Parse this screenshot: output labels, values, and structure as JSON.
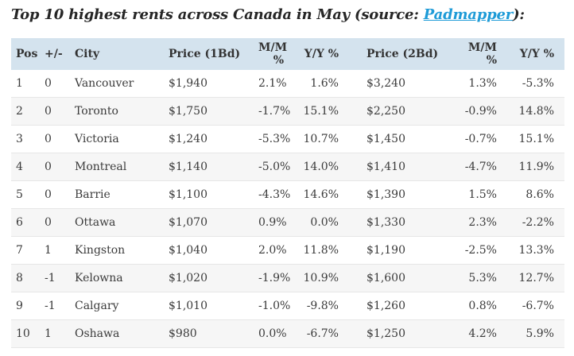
{
  "page": {
    "title_prefix": "Top 10 highest rents across Canada in May (source: ",
    "source_link": "Padmapper",
    "title_suffix": "):"
  },
  "colors": {
    "header_bg": "#d4e3ee",
    "row_alt_bg": "#f6f6f6",
    "row_border": "#e6e6e6",
    "link_blue": "#1e9bd7",
    "title_color": "#262626",
    "cell_text": "#3b3b3b"
  },
  "chart_data": {
    "type": "table",
    "title": "Top 10 highest rents across Canada in May",
    "source": "Padmapper",
    "columns": [
      "Pos",
      "+/-",
      "City",
      "Price (1Bd)",
      "M/M %",
      "Y/Y %",
      "Price (2Bd)",
      "M/M %",
      "Y/Y %"
    ],
    "rows": [
      [
        "1",
        "0",
        "Vancouver",
        "$1,940",
        "2.1%",
        "1.6%",
        "$3,240",
        "1.3%",
        "-5.3%"
      ],
      [
        "2",
        "0",
        "Toronto",
        "$1,750",
        "-1.7%",
        "15.1%",
        "$2,250",
        "-0.9%",
        "14.8%"
      ],
      [
        "3",
        "0",
        "Victoria",
        "$1,240",
        "-5.3%",
        "10.7%",
        "$1,450",
        "-0.7%",
        "15.1%"
      ],
      [
        "4",
        "0",
        "Montreal",
        "$1,140",
        "-5.0%",
        "14.0%",
        "$1,410",
        "-4.7%",
        "11.9%"
      ],
      [
        "5",
        "0",
        "Barrie",
        "$1,100",
        "-4.3%",
        "14.6%",
        "$1,390",
        "1.5%",
        "8.6%"
      ],
      [
        "6",
        "0",
        "Ottawa",
        "$1,070",
        "0.9%",
        "0.0%",
        "$1,330",
        "2.3%",
        "-2.2%"
      ],
      [
        "7",
        "1",
        "Kingston",
        "$1,040",
        "2.0%",
        "11.8%",
        "$1,190",
        "-2.5%",
        "13.3%"
      ],
      [
        "8",
        "-1",
        "Kelowna",
        "$1,020",
        "-1.9%",
        "10.9%",
        "$1,600",
        "5.3%",
        "12.7%"
      ],
      [
        "9",
        "-1",
        "Calgary",
        "$1,010",
        "-1.0%",
        "-9.8%",
        "$1,260",
        "0.8%",
        "-6.7%"
      ],
      [
        "10",
        "1",
        "Oshawa",
        "$980",
        "0.0%",
        "-6.7%",
        "$1,250",
        "4.2%",
        "5.9%"
      ]
    ]
  }
}
